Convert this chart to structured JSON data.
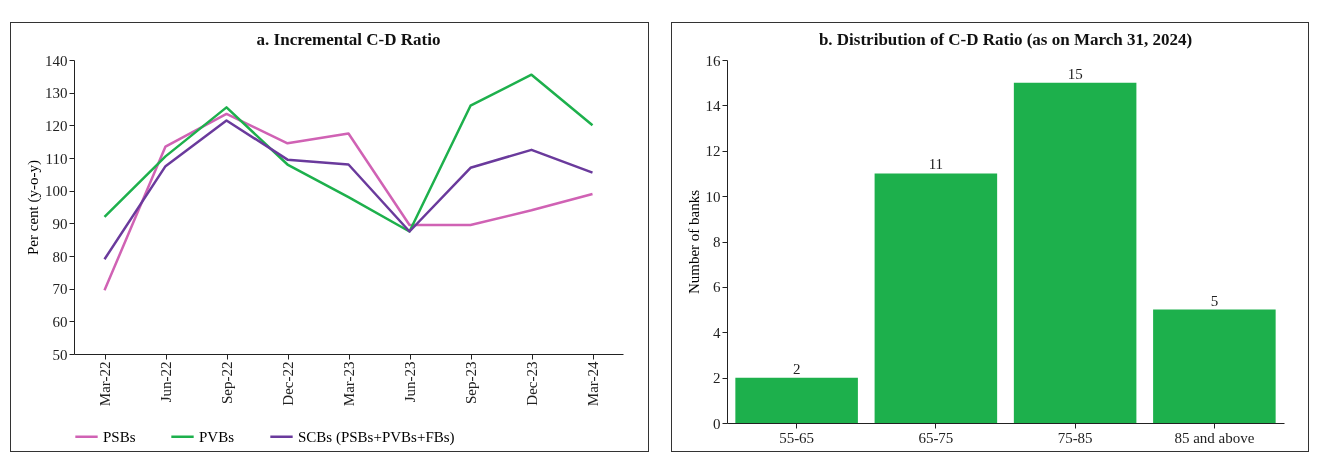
{
  "chart_data": [
    {
      "type": "line",
      "title": "a. Incremental C-D Ratio",
      "ylabel": "Per cent (y-o-y)",
      "categories": [
        "Mar-22",
        "Jun-22",
        "Sep-22",
        "Dec-22",
        "Mar-23",
        "Jun-23",
        "Sep-23",
        "Dec-23",
        "Mar-24"
      ],
      "series": [
        {
          "name": "PSBs",
          "color": "#d062b4",
          "values": [
            69.5,
            113.5,
            123.5,
            114.5,
            117.5,
            89.5,
            89.5,
            94,
            99
          ]
        },
        {
          "name": "PVBs",
          "color": "#1db04c",
          "values": [
            92,
            110.5,
            125.5,
            108,
            98,
            87.5,
            126,
            135.5,
            120
          ]
        },
        {
          "name": "SCBs (PSBs+PVBs+FBs)",
          "color": "#6a3a9c",
          "values": [
            79,
            107.5,
            121.5,
            109.5,
            108,
            87.5,
            107,
            112.5,
            105.5
          ]
        }
      ],
      "ylim": [
        50,
        140
      ],
      "yticks": [
        50,
        60,
        70,
        80,
        90,
        100,
        110,
        120,
        130,
        140
      ],
      "grid": false,
      "legend": "bottom",
      "marker": "none",
      "line_style": "solid"
    },
    {
      "type": "bar",
      "title": "b. Distribution of C-D Ratio (as on March 31, 2024)",
      "ylabel": "Number of banks",
      "categories": [
        "55-65",
        "65-75",
        "75-85",
        "85 and above"
      ],
      "values": [
        2,
        11,
        15,
        5
      ],
      "color": "#1db04c",
      "ylim": [
        0,
        16
      ],
      "yticks": [
        0,
        2,
        4,
        6,
        8,
        10,
        12,
        14,
        16
      ],
      "grid": false,
      "data_labels": true
    }
  ]
}
